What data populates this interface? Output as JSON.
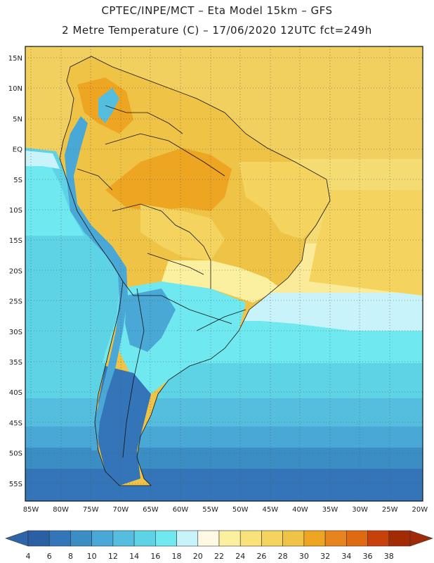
{
  "header": {
    "line1": "CPTEC/INPE/MCT –  Eta Model 15km – GFS",
    "line2": "2 Metre Temperature (C) – 17/06/2020 12UTC fct=249h"
  },
  "axes": {
    "lat_labels": [
      "15N",
      "10N",
      "5N",
      "EQ",
      "5S",
      "10S",
      "15S",
      "20S",
      "25S",
      "30S",
      "35S",
      "40S",
      "45S",
      "50S",
      "55S"
    ],
    "lon_labels": [
      "85W",
      "80W",
      "75W",
      "70W",
      "65W",
      "60W",
      "55W",
      "50W",
      "45W",
      "40W",
      "35W",
      "30W",
      "25W",
      "20W"
    ]
  },
  "colorbar": {
    "labels": [
      "4",
      "6",
      "8",
      "10",
      "12",
      "14",
      "16",
      "18",
      "20",
      "22",
      "24",
      "26",
      "28",
      "30",
      "32",
      "34",
      "36",
      "38"
    ],
    "colors": [
      "#2b5fa4",
      "#3375b8",
      "#3b8ec4",
      "#4aa8d6",
      "#55bedf",
      "#5fd3e6",
      "#70e8f0",
      "#c8f3fa",
      "#fdf9e2",
      "#fbf0a0",
      "#f9e27a",
      "#f4d45e",
      "#efc446",
      "#eda522",
      "#e8841e",
      "#df6a12",
      "#c8400a",
      "#a22b05"
    ],
    "under_color": "#2e65a8",
    "over_color": "#a02a08"
  }
}
